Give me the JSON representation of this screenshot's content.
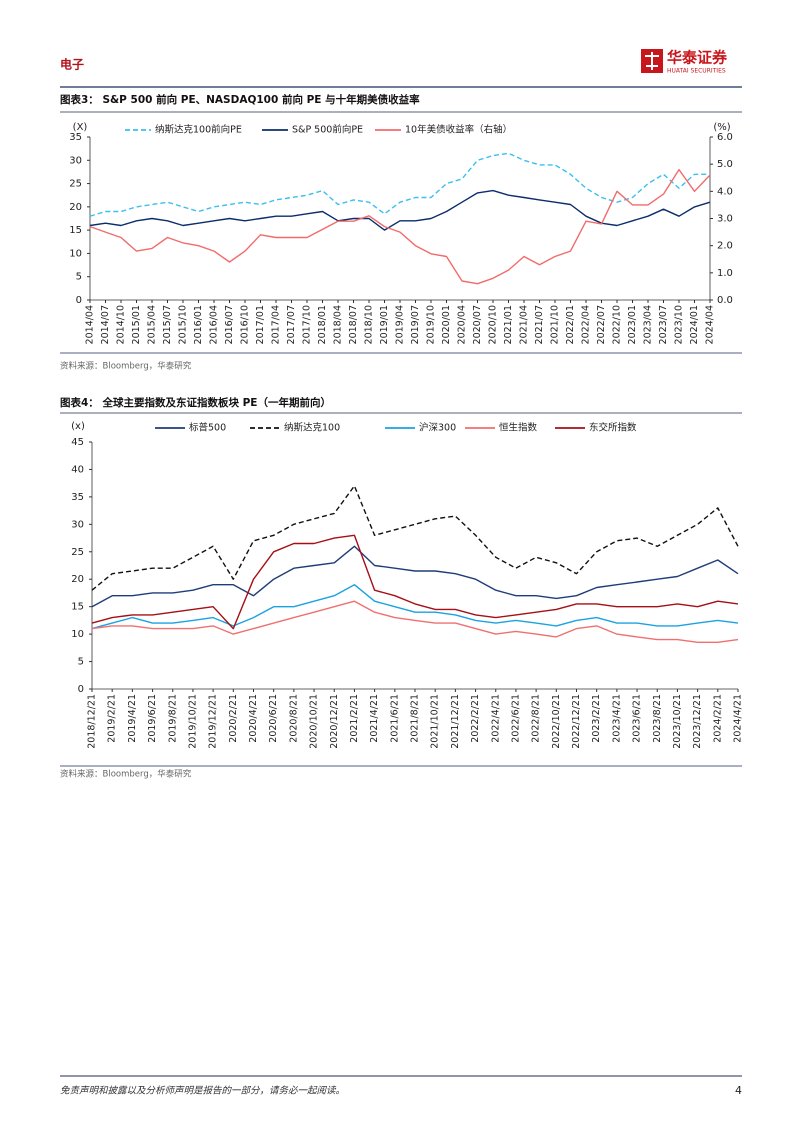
{
  "header": {
    "section": "电子",
    "logo": "华泰证券",
    "logo_en": "HUATAI SECURITIES"
  },
  "chart_data": [
    {
      "type": "line",
      "title": "图表3：  S&P 500 前向 PE、NASDAQ100 前向 PE 与十年期美债收益率",
      "source": "资料来源：Bloomberg，华泰研究",
      "y_label": "(X)",
      "y2_label": "(%)",
      "categories": [
        "2014/04",
        "2014/07",
        "2014/10",
        "2015/01",
        "2015/04",
        "2015/07",
        "2015/10",
        "2016/01",
        "2016/04",
        "2016/07",
        "2016/10",
        "2017/01",
        "2017/04",
        "2017/07",
        "2017/10",
        "2018/01",
        "2018/04",
        "2018/07",
        "2018/10",
        "2019/01",
        "2019/04",
        "2019/07",
        "2019/10",
        "2020/01",
        "2020/04",
        "2020/07",
        "2020/10",
        "2021/01",
        "2021/04",
        "2021/07",
        "2021/10",
        "2022/01",
        "2022/04",
        "2022/07",
        "2022/10",
        "2023/01",
        "2023/04",
        "2023/07",
        "2023/10",
        "2024/01",
        "2024/04"
      ],
      "ylim": [
        0,
        35
      ],
      "yticks": [
        0,
        5,
        10,
        15,
        20,
        25,
        30,
        35
      ],
      "y2lim": [
        0,
        6
      ],
      "y2ticks": [
        {
          "value": 0,
          "label": "0.0"
        },
        {
          "value": 1,
          "label": "1.0"
        },
        {
          "value": 2,
          "label": "2.0"
        },
        {
          "value": 3,
          "label": "3.0"
        },
        {
          "value": 4,
          "label": "4.0"
        },
        {
          "value": 5,
          "label": "5.0"
        },
        {
          "value": 6,
          "label": "6.0"
        }
      ],
      "series": [
        {
          "name": "纳斯达克100前向PE",
          "color": "#3bbfef",
          "dashed": true,
          "values": [
            18,
            19,
            19,
            20,
            20.5,
            21,
            20,
            19,
            20,
            20.5,
            21,
            20.5,
            21.5,
            22,
            22.5,
            23.5,
            20.5,
            21.5,
            21,
            18.5,
            21,
            22,
            22,
            25,
            26,
            30,
            31,
            31.5,
            30,
            29,
            29,
            27,
            24,
            22,
            21,
            22,
            25,
            27,
            24,
            27,
            27
          ]
        },
        {
          "name": "S&P 500前向PE",
          "color": "#0b2d6b",
          "dashed": false,
          "values": [
            16,
            16.5,
            16,
            17,
            17.5,
            17,
            16,
            16.5,
            17,
            17.5,
            17,
            17.5,
            18,
            18,
            18.5,
            19,
            17,
            17.5,
            17.5,
            15,
            17,
            17,
            17.5,
            19,
            21,
            23,
            23.5,
            22.5,
            22,
            21.5,
            21,
            20.5,
            18,
            16.5,
            16,
            17,
            18,
            19.5,
            18,
            20,
            21
          ]
        },
        {
          "name": "10年美债收益率（右轴）",
          "color": "#f26b6b",
          "dashed": false,
          "axis": "y2",
          "values": [
            2.7,
            2.5,
            2.3,
            1.8,
            1.9,
            2.3,
            2.1,
            2.0,
            1.8,
            1.4,
            1.8,
            2.4,
            2.3,
            2.3,
            2.3,
            2.6,
            2.9,
            2.9,
            3.1,
            2.7,
            2.5,
            2.0,
            1.7,
            1.6,
            0.7,
            0.6,
            0.8,
            1.1,
            1.6,
            1.3,
            1.6,
            1.8,
            2.9,
            2.8,
            4.0,
            3.5,
            3.5,
            3.9,
            4.8,
            4.0,
            4.6
          ]
        }
      ]
    },
    {
      "type": "line",
      "title": "图表4：  全球主要指数及东证指数板块 PE（一年期前向）",
      "source": "资料来源：Bloomberg，华泰研究",
      "y_label": "(x)",
      "categories": [
        "2018/12/21",
        "2019/2/21",
        "2019/4/21",
        "2019/6/21",
        "2019/8/21",
        "2019/10/21",
        "2019/12/21",
        "2020/2/21",
        "2020/4/21",
        "2020/6/21",
        "2020/8/21",
        "2020/10/21",
        "2020/12/21",
        "2021/2/21",
        "2021/4/21",
        "2021/6/21",
        "2021/8/21",
        "2021/10/21",
        "2021/12/21",
        "2022/2/21",
        "2022/4/21",
        "2022/6/21",
        "2022/8/21",
        "2022/10/21",
        "2022/12/21",
        "2023/2/21",
        "2023/4/21",
        "2023/6/21",
        "2023/8/21",
        "2023/10/21",
        "2023/12/21",
        "2024/2/21",
        "2024/4/21"
      ],
      "ylim": [
        0,
        45
      ],
      "yticks": [
        0,
        5,
        10,
        15,
        20,
        25,
        30,
        35,
        40,
        45
      ],
      "series": [
        {
          "name": "标普500",
          "color": "#1f3d7a",
          "dashed": false,
          "values": [
            15,
            17,
            17,
            17.5,
            17.5,
            18,
            19,
            19,
            17,
            20,
            22,
            22.5,
            23,
            26,
            22.5,
            22,
            21.5,
            21.5,
            21,
            20,
            18,
            17,
            17,
            16.5,
            17,
            18.5,
            19,
            19.5,
            20,
            20.5,
            22,
            23.5,
            21
          ]
        },
        {
          "name": "纳斯达克100",
          "color": "#111111",
          "dashed": true,
          "values": [
            18,
            21,
            21.5,
            22,
            22,
            24,
            26,
            20,
            27,
            28,
            30,
            31,
            32,
            37,
            28,
            29,
            30,
            31,
            31.5,
            28,
            24,
            22,
            24,
            23,
            21,
            25,
            27,
            27.5,
            26,
            28,
            30,
            33,
            26
          ]
        },
        {
          "name": "沪深300",
          "color": "#1aa3e0",
          "dashed": false,
          "values": [
            11,
            12,
            13,
            12,
            12,
            12.5,
            13,
            11.5,
            13,
            15,
            15,
            16,
            17,
            19,
            16,
            15,
            14,
            14,
            13.5,
            12.5,
            12,
            12.5,
            12,
            11.5,
            12.5,
            13,
            12,
            12,
            11.5,
            11.5,
            12,
            12.5,
            12
          ]
        },
        {
          "name": "恒生指数",
          "color": "#f07070",
          "dashed": false,
          "values": [
            11,
            11.5,
            11.5,
            11,
            11,
            11,
            11.5,
            10,
            11,
            12,
            13,
            14,
            15,
            16,
            14,
            13,
            12.5,
            12,
            12,
            11,
            10,
            10.5,
            10,
            9.5,
            11,
            11.5,
            10,
            9.5,
            9,
            9,
            8.5,
            8.5,
            9
          ]
        },
        {
          "name": "东交所指数",
          "color": "#a50f15",
          "dashed": false,
          "values": [
            12,
            13,
            13.5,
            13.5,
            14,
            14.5,
            15,
            11,
            20,
            25,
            26.5,
            26.5,
            27.5,
            28,
            18,
            17,
            15.5,
            14.5,
            14.5,
            13.5,
            13,
            13.5,
            14,
            14.5,
            15.5,
            15.5,
            15,
            15,
            15,
            15.5,
            15,
            16,
            15.5
          ]
        }
      ]
    }
  ],
  "footer": {
    "disclaimer": "免责声明和披露以及分析师声明是报告的一部分，请务必一起阅读。",
    "page": "4"
  }
}
